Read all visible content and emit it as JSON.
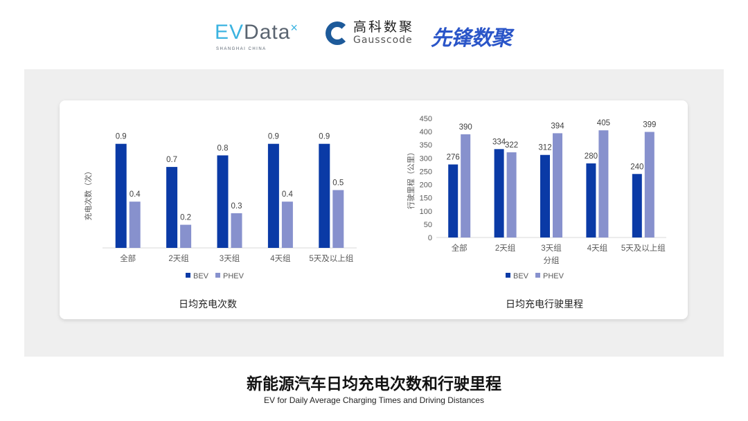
{
  "logos": {
    "evdata": {
      "ev": "EV",
      "rest": "Data",
      "sub": "SHANGHAI CHINA"
    },
    "gausscode": {
      "cn": "高科数聚",
      "en": "Gausscode"
    },
    "xianfeng": "先锋数聚"
  },
  "colors": {
    "BEV": "#0a3aa6",
    "PHEV": "#8791cd",
    "axis": "#d9d9d9",
    "text": "#595959"
  },
  "chart_data": [
    {
      "type": "bar",
      "title": "日均充电次数",
      "xlabel": "",
      "ylabel": "充电次数（次）",
      "categories": [
        "全部",
        "2天组",
        "3天组",
        "4天组",
        "5天及以上组"
      ],
      "series": [
        {
          "name": "BEV",
          "values": [
            0.9,
            0.7,
            0.8,
            0.9,
            0.9
          ]
        },
        {
          "name": "PHEV",
          "values": [
            0.4,
            0.2,
            0.3,
            0.4,
            0.5
          ]
        }
      ],
      "ylim": [
        0,
        1.0
      ],
      "yticks": [],
      "grid": false,
      "legend": "bottom"
    },
    {
      "type": "bar",
      "title": "日均充电行驶里程",
      "xlabel": "分组",
      "ylabel": "行驶里程（公里）",
      "categories": [
        "全部",
        "2天组",
        "3天组",
        "4天组",
        "5天及以上组"
      ],
      "series": [
        {
          "name": "BEV",
          "values": [
            276,
            334,
            312,
            280,
            240
          ]
        },
        {
          "name": "PHEV",
          "values": [
            390,
            322,
            394,
            405,
            399
          ]
        }
      ],
      "ylim": [
        0,
        450
      ],
      "yticks": [
        0,
        50,
        100,
        150,
        200,
        250,
        300,
        350,
        400,
        450
      ],
      "grid": false,
      "legend": "bottom"
    }
  ],
  "footer": {
    "title": "新能源汽车日均充电次数和行驶里程",
    "subtitle": "EV for Daily Average Charging Times and Driving Distances"
  }
}
